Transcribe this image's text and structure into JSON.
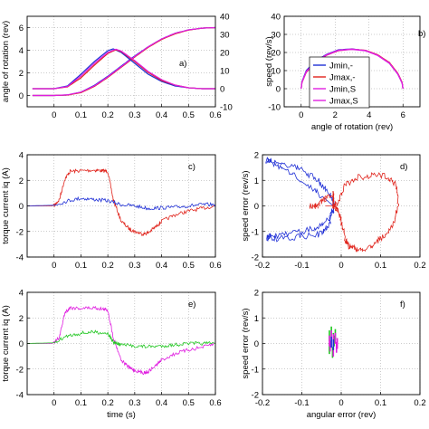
{
  "colors": {
    "blue": "#1f2fd6",
    "red": "#e0231b",
    "magenta": "#e01ee0",
    "green": "#21c621",
    "axis": "#000000"
  },
  "chart_data": [
    {
      "id": "a",
      "type": "line",
      "panel_label": "a)",
      "xlabel": "",
      "ylabel": "angle of rotation (rev)",
      "xlim": [
        -0.1,
        0.6
      ],
      "ylim": [
        -1,
        7
      ],
      "y2lim": [
        -10,
        40
      ],
      "xticks": [
        0,
        0.1,
        0.2,
        0.3,
        0.4,
        0.5,
        0.6
      ],
      "xtick_labels": [
        "0",
        "0.1",
        "0.2",
        "0.3",
        "0.4",
        "0.5",
        "0.6"
      ],
      "yticks": [
        0,
        2,
        4,
        6
      ],
      "ytick_labels": [
        "0",
        "2",
        "4",
        "6"
      ],
      "y2ticks": [
        -10,
        0,
        10,
        20,
        30,
        40
      ],
      "y2tick_labels": [
        "-10",
        "0",
        "10",
        "20",
        "30",
        "40"
      ],
      "grid": true,
      "series": [
        {
          "color": "blue",
          "axis": "y",
          "x": [
            -0.08,
            0,
            0.05,
            0.1,
            0.15,
            0.2,
            0.25,
            0.3,
            0.35,
            0.4,
            0.45,
            0.5,
            0.55,
            0.6
          ],
          "y": [
            0,
            0,
            0.05,
            0.3,
            0.9,
            1.7,
            2.6,
            3.5,
            4.3,
            5.0,
            5.5,
            5.8,
            5.95,
            6.0
          ]
        },
        {
          "color": "red",
          "axis": "y",
          "x": [
            -0.08,
            0,
            0.05,
            0.1,
            0.15,
            0.2,
            0.25,
            0.3,
            0.35,
            0.4,
            0.45,
            0.5,
            0.55,
            0.6
          ],
          "y": [
            0,
            0,
            0.04,
            0.25,
            0.8,
            1.6,
            2.5,
            3.4,
            4.25,
            4.95,
            5.45,
            5.78,
            5.95,
            6.0
          ]
        },
        {
          "color": "magenta",
          "axis": "y",
          "x": [
            -0.08,
            0,
            0.05,
            0.1,
            0.15,
            0.2,
            0.25,
            0.3,
            0.35,
            0.4,
            0.45,
            0.5,
            0.55,
            0.6
          ],
          "y": [
            0,
            0,
            0.06,
            0.3,
            0.85,
            1.65,
            2.55,
            3.45,
            4.3,
            5.0,
            5.5,
            5.8,
            5.95,
            6.0
          ]
        },
        {
          "color": "blue",
          "axis": "y2",
          "x": [
            -0.08,
            0,
            0.05,
            0.1,
            0.15,
            0.2,
            0.22,
            0.25,
            0.3,
            0.35,
            0.4,
            0.45,
            0.5,
            0.55,
            0.6
          ],
          "y": [
            0,
            0,
            1.5,
            8,
            15,
            21,
            22,
            20,
            14,
            8,
            4,
            1.5,
            0.5,
            0,
            0
          ]
        },
        {
          "color": "red",
          "axis": "y2",
          "x": [
            -0.08,
            0,
            0.05,
            0.1,
            0.15,
            0.2,
            0.23,
            0.25,
            0.3,
            0.35,
            0.4,
            0.45,
            0.5,
            0.55,
            0.6
          ],
          "y": [
            0,
            0,
            1,
            6,
            13,
            19.5,
            21.5,
            20.5,
            15,
            9,
            4.5,
            2,
            0.5,
            0,
            0
          ]
        },
        {
          "color": "magenta",
          "axis": "y2",
          "x": [
            -0.08,
            0,
            0.05,
            0.1,
            0.15,
            0.2,
            0.23,
            0.25,
            0.3,
            0.35,
            0.4,
            0.45,
            0.5,
            0.55,
            0.6
          ],
          "y": [
            0,
            0,
            1.2,
            7,
            14,
            20,
            21.8,
            20.8,
            15.5,
            9.5,
            5,
            2,
            0.5,
            0,
            0
          ]
        }
      ]
    },
    {
      "id": "b",
      "type": "line",
      "panel_label": "b)",
      "xlabel": "angle of rotation (rev)",
      "ylabel": "speed (rev/s)",
      "xlim": [
        -1,
        7
      ],
      "ylim": [
        -10,
        40
      ],
      "xticks": [
        0,
        2,
        4,
        6
      ],
      "xtick_labels": [
        "0",
        "2",
        "4",
        "6"
      ],
      "yticks": [
        -10,
        0,
        10,
        20,
        30,
        40
      ],
      "ytick_labels": [
        "-10",
        "0",
        "10",
        "20",
        "30",
        "40"
      ],
      "grid": true,
      "legend_position": "lower-center",
      "series": [
        {
          "name": "Jmin,-",
          "color": "blue",
          "x": [
            0,
            0.05,
            0.3,
            0.8,
            1.5,
            2.2,
            3.0,
            3.8,
            4.5,
            5.2,
            5.7,
            5.95,
            6.0
          ],
          "y": [
            0,
            4,
            10,
            15,
            19,
            21.5,
            22,
            21,
            18.5,
            14,
            8,
            3,
            0
          ]
        },
        {
          "name": "Jmax,-",
          "color": "red",
          "x": [
            0,
            0.05,
            0.3,
            0.8,
            1.5,
            2.2,
            3.0,
            3.8,
            4.5,
            5.2,
            5.7,
            5.95,
            6.0
          ],
          "y": [
            0,
            3.5,
            9,
            14,
            18.5,
            21,
            21.8,
            21.2,
            18.8,
            14.5,
            8.5,
            3.5,
            0
          ]
        },
        {
          "name": "Jmin,S",
          "color": "magenta",
          "x": [
            0,
            0.05,
            0.3,
            0.8,
            1.5,
            2.2,
            3.0,
            3.8,
            4.5,
            5.2,
            5.7,
            5.95,
            6.0
          ],
          "y": [
            0,
            3.8,
            9.5,
            14.5,
            18.8,
            21.3,
            21.9,
            21.1,
            18.6,
            14.2,
            8.2,
            3.2,
            0
          ]
        },
        {
          "name": "Jmax,S",
          "color": "magenta",
          "x": [
            0,
            0.05,
            0.3,
            0.8,
            1.5,
            2.2,
            3.0,
            3.8,
            4.5,
            5.2,
            5.7,
            5.95,
            6.0
          ],
          "y": [
            0,
            3.6,
            9.2,
            14.2,
            18.6,
            21.1,
            21.7,
            20.9,
            18.4,
            14,
            8,
            3,
            0
          ]
        }
      ]
    },
    {
      "id": "c",
      "type": "line",
      "panel_label": "c)",
      "xlabel": "",
      "ylabel": "torque current iq (A)",
      "xlim": [
        -0.1,
        0.6
      ],
      "ylim": [
        -4,
        4
      ],
      "xticks": [
        0,
        0.1,
        0.2,
        0.3,
        0.4,
        0.5,
        0.6
      ],
      "xtick_labels": [
        "0",
        "0.1",
        "0.2",
        "0.3",
        "0.4",
        "0.5",
        "0.6"
      ],
      "yticks": [
        -4,
        -2,
        0,
        2,
        4
      ],
      "ytick_labels": [
        "-4",
        "-2",
        "0",
        "2",
        "4"
      ],
      "grid": true,
      "series": [
        {
          "color": "red",
          "x": [
            -0.1,
            0,
            0.02,
            0.04,
            0.06,
            0.1,
            0.15,
            0.18,
            0.2,
            0.22,
            0.25,
            0.28,
            0.3,
            0.33,
            0.35,
            0.38,
            0.4,
            0.45,
            0.5,
            0.55,
            0.6
          ],
          "y": [
            0,
            0,
            0.5,
            2.1,
            2.7,
            2.75,
            2.8,
            2.75,
            2.7,
            0.5,
            -1.2,
            -1.8,
            -2.0,
            -2.2,
            -2.1,
            -1.6,
            -1.2,
            -0.7,
            -0.4,
            -0.2,
            0
          ]
        },
        {
          "color": "blue",
          "x": [
            -0.1,
            0,
            0.05,
            0.1,
            0.15,
            0.2,
            0.25,
            0.3,
            0.35,
            0.4,
            0.45,
            0.5,
            0.55,
            0.6
          ],
          "y": [
            0,
            0.05,
            0.4,
            0.6,
            0.5,
            0.4,
            0.1,
            0,
            -0.2,
            -0.15,
            -0.1,
            0,
            0.1,
            0.1
          ]
        }
      ]
    },
    {
      "id": "d",
      "type": "line",
      "panel_label": "d)",
      "xlabel": "",
      "ylabel": "speed error (rev/s)",
      "xlim": [
        -0.2,
        0.2
      ],
      "ylim": [
        -2,
        2
      ],
      "xticks": [
        -0.2,
        -0.1,
        0,
        0.1,
        0.2
      ],
      "xtick_labels": [
        "-0.2",
        "-0.1",
        "0",
        "0.1",
        "0.2"
      ],
      "yticks": [
        -2,
        -1,
        0,
        1,
        2
      ],
      "ytick_labels": [
        "-2",
        "-1",
        "0",
        "1",
        "2"
      ],
      "grid": true,
      "series": [
        {
          "color": "blue",
          "x": [
            -0.02,
            -0.05,
            -0.1,
            -0.15,
            -0.18,
            -0.19,
            -0.15,
            -0.1,
            -0.06,
            -0.03,
            -0.015,
            -0.03,
            -0.07,
            -0.13,
            -0.18,
            -0.19,
            -0.15,
            -0.1,
            -0.05,
            -0.03,
            -0.02
          ],
          "y": [
            0,
            0.4,
            1.0,
            1.5,
            1.7,
            1.8,
            1.7,
            1.4,
            1.0,
            0.5,
            0,
            -0.5,
            -0.9,
            -1.1,
            -1.2,
            -1.25,
            -1.3,
            -1.2,
            -1.1,
            -0.7,
            0
          ]
        },
        {
          "color": "red",
          "x": [
            -0.04,
            -0.02,
            -0.01,
            0.01,
            0.04,
            0.08,
            0.12,
            0.14,
            0.145,
            0.13,
            0.1,
            0.07,
            0.04,
            0.02,
            0.01,
            0,
            -0.01,
            -0.02,
            -0.02,
            -0.02,
            -0.04,
            -0.06,
            -0.08
          ],
          "y": [
            0,
            0,
            0.1,
            0.8,
            1.1,
            1.2,
            1.15,
            0.8,
            0,
            -0.8,
            -1.3,
            -1.65,
            -1.7,
            -1.6,
            -1.3,
            -0.6,
            -0.1,
            -0.05,
            0.2,
            0.5,
            0.3,
            0,
            0
          ]
        }
      ]
    },
    {
      "id": "e",
      "type": "line",
      "panel_label": "e)",
      "xlabel": "time (s)",
      "ylabel": "torque current iq (A)",
      "xlim": [
        -0.1,
        0.6
      ],
      "ylim": [
        -4,
        4
      ],
      "xticks": [
        0,
        0.1,
        0.2,
        0.3,
        0.4,
        0.5,
        0.6
      ],
      "xtick_labels": [
        "0",
        "0.1",
        "0.2",
        "0.3",
        "0.4",
        "0.5",
        "0.6"
      ],
      "yticks": [
        -4,
        -2,
        0,
        2,
        4
      ],
      "ytick_labels": [
        "-4",
        "-2",
        "0",
        "2",
        "4"
      ],
      "grid": true,
      "series": [
        {
          "color": "magenta",
          "x": [
            -0.1,
            0,
            0.02,
            0.04,
            0.06,
            0.1,
            0.15,
            0.18,
            0.2,
            0.22,
            0.25,
            0.28,
            0.3,
            0.33,
            0.35,
            0.38,
            0.4,
            0.45,
            0.5,
            0.55,
            0.6
          ],
          "y": [
            0,
            0,
            0.5,
            2.4,
            2.8,
            2.75,
            2.8,
            2.7,
            2.6,
            0.5,
            -1.3,
            -1.9,
            -2.1,
            -2.3,
            -2.2,
            -1.7,
            -1.3,
            -0.8,
            -0.5,
            -0.3,
            0
          ]
        },
        {
          "color": "green",
          "x": [
            -0.1,
            0,
            0.05,
            0.1,
            0.15,
            0.2,
            0.22,
            0.25,
            0.3,
            0.35,
            0.4,
            0.45,
            0.5,
            0.55,
            0.6
          ],
          "y": [
            0,
            0.05,
            0.6,
            0.8,
            0.9,
            0.8,
            0.1,
            -0.1,
            -0.2,
            -0.25,
            -0.2,
            -0.1,
            0,
            0,
            0
          ]
        }
      ]
    },
    {
      "id": "f",
      "type": "scatter",
      "panel_label": "f)",
      "xlabel": "angular error (rev)",
      "ylabel": "speed error (rev/s)",
      "xlim": [
        -0.2,
        0.2
      ],
      "ylim": [
        -2,
        2
      ],
      "xticks": [
        -0.2,
        -0.1,
        0,
        0.1,
        0.2
      ],
      "xtick_labels": [
        "-0.2",
        "-0.1",
        "0",
        "0.1",
        "0.2"
      ],
      "yticks": [
        -2,
        -1,
        0,
        1,
        2
      ],
      "ytick_labels": [
        "-2",
        "-1",
        "0",
        "1",
        "2"
      ],
      "grid": true,
      "series": [
        {
          "color": "green",
          "x": [
            -0.03,
            -0.025,
            -0.02,
            -0.015,
            -0.03,
            -0.022,
            -0.018
          ],
          "y": [
            0.3,
            0.45,
            0.2,
            0.35,
            -0.2,
            -0.35,
            0.1
          ]
        },
        {
          "color": "magenta",
          "x": [
            -0.03,
            -0.025,
            -0.02,
            -0.015,
            -0.01,
            -0.028,
            -0.02,
            -0.012
          ],
          "y": [
            0.1,
            0.3,
            0.15,
            0.2,
            0,
            -0.1,
            -0.3,
            -0.15
          ]
        },
        {
          "color": "blue",
          "x": [
            -0.025,
            -0.02
          ],
          "y": [
            0.05,
            -0.05
          ]
        }
      ]
    }
  ]
}
